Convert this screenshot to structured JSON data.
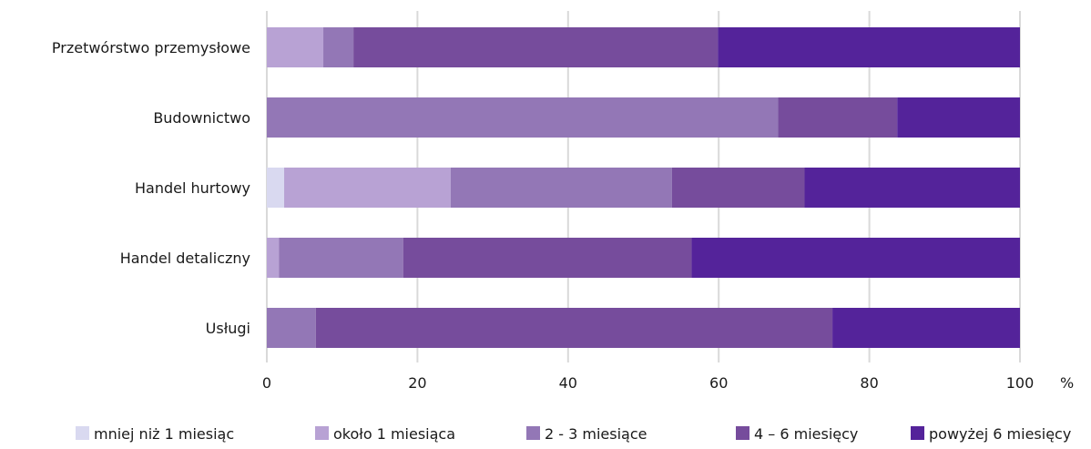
{
  "chart_data": {
    "type": "bar",
    "orientation": "horizontal",
    "stacked": true,
    "categories": [
      "Przetwórstwo przemysłowe",
      "Budownictwo",
      "Handel hurtowy",
      "Handel detaliczny",
      "Usługi"
    ],
    "series": [
      {
        "name": "mniej niż 1 miesiąc",
        "color": "#d9d9f0",
        "values": [
          0,
          0,
          2.3,
          0,
          0
        ]
      },
      {
        "name": "około 1 miesiąca",
        "color": "#b8a2d4",
        "values": [
          7.5,
          0,
          22.1,
          1.6,
          0
        ]
      },
      {
        "name": "2 - 3 miesiące",
        "color": "#9377b6",
        "values": [
          4.0,
          67.9,
          29.4,
          16.5,
          6.5
        ]
      },
      {
        "name": "4 – 6 miesięcy",
        "color": "#764c9c",
        "values": [
          48.4,
          15.8,
          17.6,
          38.3,
          68.6
        ]
      },
      {
        "name": "powyżej 6 miesięcy",
        "color": "#54239a",
        "values": [
          40.1,
          16.3,
          28.6,
          43.6,
          24.9
        ]
      }
    ],
    "x_ticks": [
      "0",
      "20",
      "40",
      "60",
      "80",
      "100"
    ],
    "x_unit": "%",
    "xlim": [
      0,
      100
    ],
    "grid": "vertical",
    "legend_position": "bottom",
    "title": "",
    "xlabel": "",
    "ylabel": ""
  }
}
